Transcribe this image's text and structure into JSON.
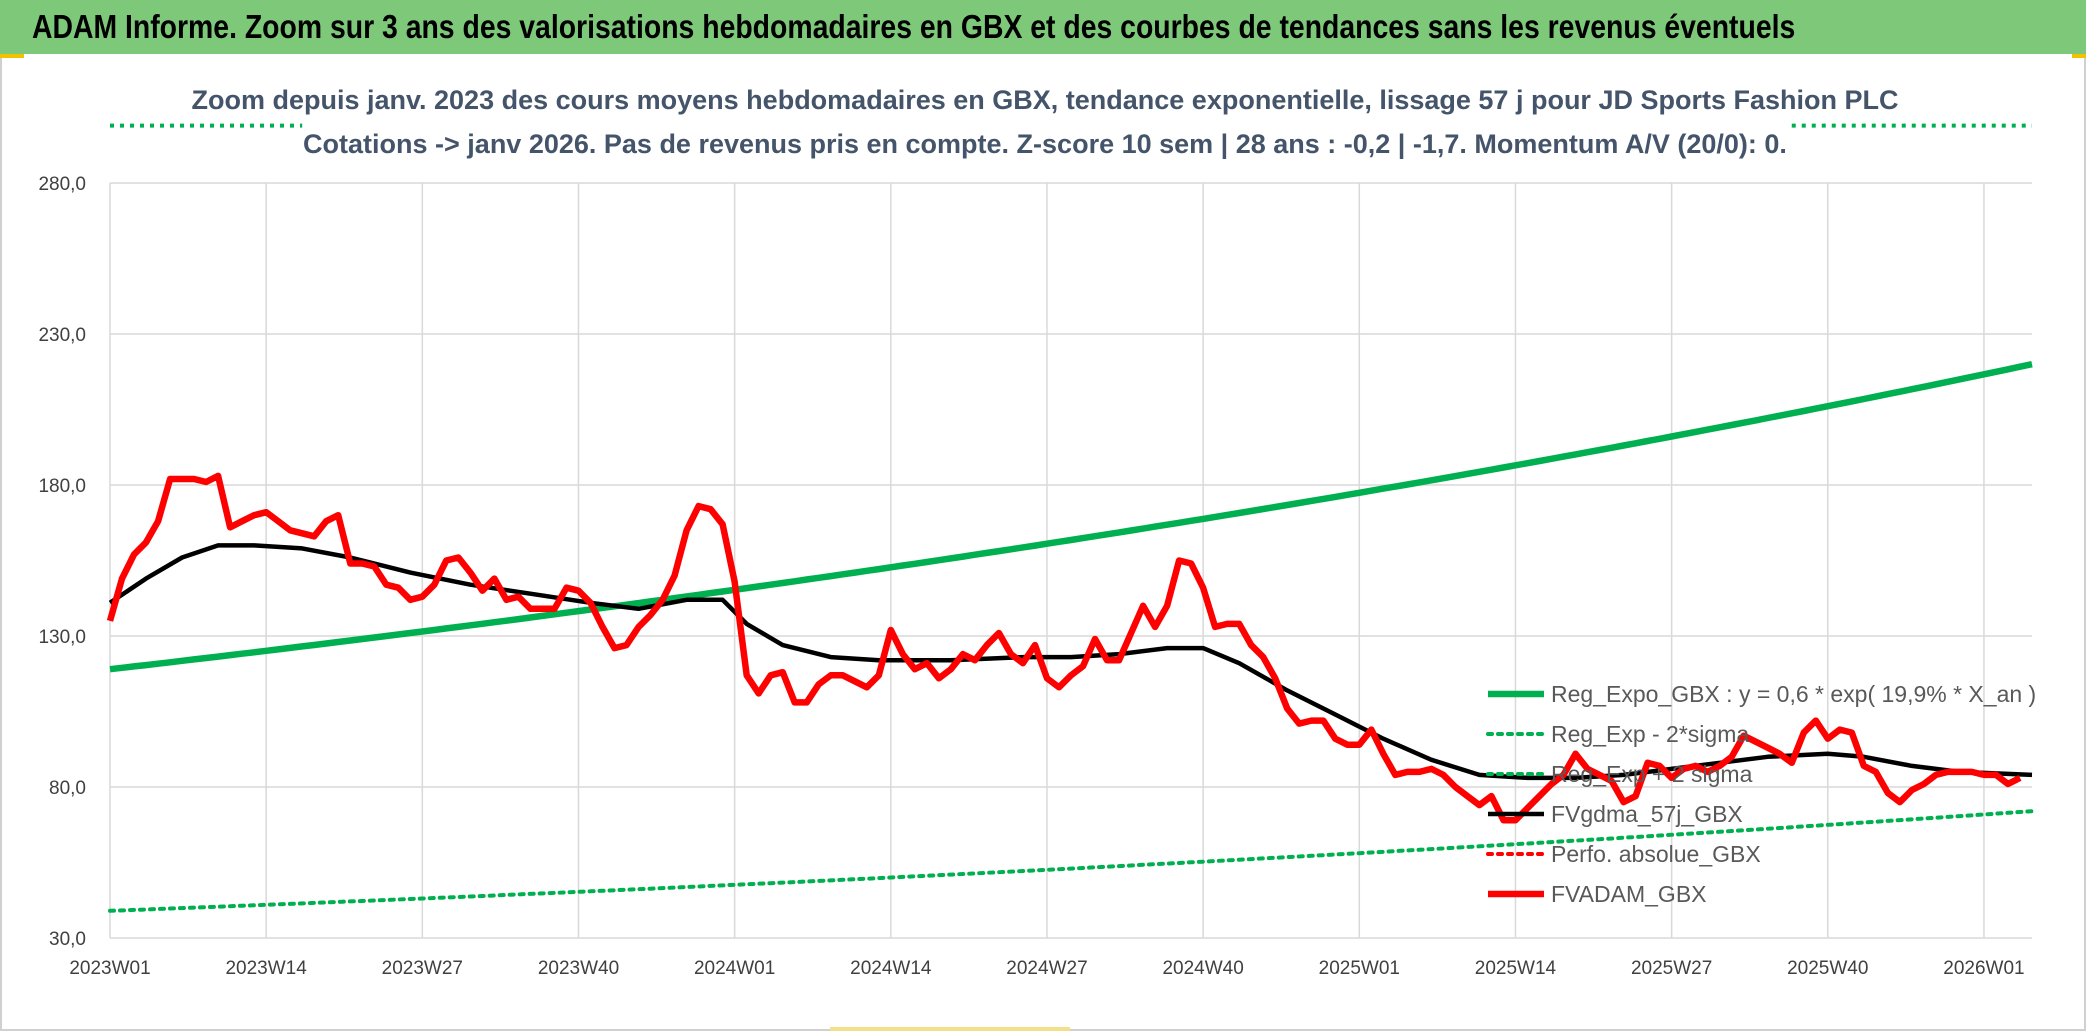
{
  "header": {
    "banner_title": "ADAM Informe. Zoom sur 3 ans des valorisations hebdomadaires en GBX et des courbes de tendances sans les revenus éventuels"
  },
  "chart_data": {
    "type": "line",
    "title_lines": [
      "Zoom depuis janv. 2023 des cours moyens hebdomadaires en GBX, tendance exponentielle, lissage 57 j pour JD Sports Fashion PLC",
      "Cotations -> janv 2026. Pas de revenus pris en compte. Z-score 10 sem | 28 ans : -0,2 | -1,7. Momentum A/V (20/0): 0."
    ],
    "xlabel": "",
    "ylabel": "",
    "ylim": [
      30,
      280
    ],
    "y_ticks": [
      "30,0",
      "80,0",
      "130,0",
      "180,0",
      "230,0",
      "280,0"
    ],
    "y_tick_values": [
      30,
      80,
      130,
      180,
      230,
      280
    ],
    "x_ticks": [
      "2023W01",
      "2023W14",
      "2023W27",
      "2023W40",
      "2024W01",
      "2024W14",
      "2024W27",
      "2024W40",
      "2025W01",
      "2025W14",
      "2025W27",
      "2025W40",
      "2026W01"
    ],
    "x_tick_weeks": [
      0,
      13,
      26,
      39,
      52,
      65,
      78,
      91,
      104,
      117,
      130,
      143,
      156
    ],
    "x_range_weeks": [
      0,
      160
    ],
    "grid": true,
    "legend_position": "bottom-right",
    "colors": {
      "trend": "#00b050",
      "sigma": "#00b050",
      "smooth": "#000000",
      "perf": "#ff0000",
      "price": "#ff0000"
    },
    "series": [
      {
        "name": "Reg_Expo_GBX : y = 0,6 * exp( 19,9% *  X_an )",
        "style": "solid-thick",
        "x": [
          0,
          160
        ],
        "values": [
          119,
          220
        ],
        "shape": "exponential"
      },
      {
        "name": "Reg_Exp - 2*sigma",
        "style": "dotted",
        "x": [
          0,
          160
        ],
        "values": [
          39,
          72
        ],
        "shape": "exponential"
      },
      {
        "name": "Reg_Exp + 2 sigma",
        "style": "dotted",
        "x": [
          0,
          160
        ],
        "values": [
          299,
          299
        ],
        "note_segments": [
          [
            0,
            16
          ],
          [
            140,
            160
          ]
        ]
      },
      {
        "name": "FVgdma_57j_GBX",
        "style": "solid",
        "x": [
          0,
          3,
          6,
          9,
          12,
          16,
          20,
          25,
          30,
          35,
          40,
          44,
          48,
          51,
          53,
          56,
          60,
          64,
          70,
          76,
          80,
          84,
          88,
          91,
          94,
          98,
          102,
          106,
          110,
          114,
          118,
          122,
          126,
          130,
          134,
          138,
          143,
          146,
          150,
          154,
          160
        ],
        "values": [
          141,
          149,
          156,
          160,
          160,
          159,
          156,
          151,
          147,
          144,
          141,
          139,
          142,
          142,
          134,
          127,
          123,
          122,
          122,
          123,
          123,
          124,
          126,
          126,
          121,
          112,
          104,
          96,
          89,
          84,
          83,
          83,
          84,
          86,
          88,
          90,
          91,
          90,
          87,
          85,
          84
        ]
      },
      {
        "name": "Perfo. absolue_GBX",
        "style": "dotted",
        "x": [],
        "values": []
      },
      {
        "name": "FVADAM_GBX",
        "style": "solid-thick",
        "x": [
          0,
          1,
          2,
          3,
          4,
          5,
          6,
          7,
          8,
          9,
          10,
          11,
          12,
          13,
          14,
          15,
          16,
          17,
          18,
          19,
          20,
          21,
          22,
          23,
          24,
          25,
          26,
          27,
          28,
          29,
          30,
          31,
          32,
          33,
          34,
          35,
          36,
          37,
          38,
          39,
          40,
          41,
          42,
          43,
          44,
          45,
          46,
          47,
          48,
          49,
          50,
          51,
          52,
          53,
          54,
          55,
          56,
          57,
          58,
          59,
          60,
          61,
          62,
          63,
          64,
          65,
          66,
          67,
          68,
          69,
          70,
          71,
          72,
          73,
          74,
          75,
          76,
          77,
          78,
          79,
          80,
          81,
          82,
          83,
          84,
          85,
          86,
          87,
          88,
          89,
          90,
          91,
          92,
          93,
          94,
          95,
          96,
          97,
          98,
          99,
          100,
          101,
          102,
          103,
          104,
          105,
          106,
          107,
          108,
          109,
          110,
          111,
          112,
          113,
          114,
          115,
          116,
          117,
          118,
          119,
          120,
          121,
          122,
          123,
          124,
          125,
          126,
          127,
          128,
          129,
          130,
          131,
          132,
          133,
          134,
          135,
          136,
          137,
          138,
          139,
          140,
          141,
          142,
          143,
          144,
          145,
          146,
          147,
          148,
          149,
          150,
          151,
          152,
          153,
          154,
          155,
          156,
          157,
          158,
          159
        ],
        "values": [
          135,
          149,
          157,
          161,
          168,
          182,
          182,
          182,
          181,
          183,
          166,
          168,
          170,
          171,
          168,
          165,
          164,
          163,
          168,
          170,
          154,
          154,
          153,
          147,
          146,
          142,
          143,
          147,
          155,
          156,
          151,
          145,
          149,
          142,
          143,
          139,
          139,
          139,
          146,
          145,
          141,
          133,
          126,
          127,
          133,
          137,
          142,
          150,
          165,
          173,
          172,
          167,
          148,
          117,
          111,
          117,
          118,
          108,
          108,
          114,
          117,
          117,
          115,
          113,
          117,
          132,
          124,
          119,
          121,
          116,
          119,
          124,
          122,
          127,
          131,
          124,
          121,
          127,
          116,
          113,
          117,
          120,
          129,
          122,
          122,
          131,
          140,
          133,
          140,
          155,
          154,
          146,
          133,
          134,
          134,
          127,
          123,
          116,
          106,
          101,
          102,
          102,
          96,
          94,
          94,
          99,
          91,
          84,
          85,
          85,
          86,
          84,
          80,
          77,
          74,
          77,
          69,
          69,
          73,
          77,
          81,
          84,
          91,
          86,
          84,
          82,
          75,
          77,
          88,
          87,
          83,
          86,
          87,
          85,
          87,
          90,
          97,
          95,
          93,
          91,
          88,
          98,
          102,
          96,
          99,
          98,
          87,
          85,
          78,
          75,
          79,
          81,
          84,
          85,
          85,
          85,
          84,
          84,
          81,
          83
        ]
      }
    ]
  }
}
